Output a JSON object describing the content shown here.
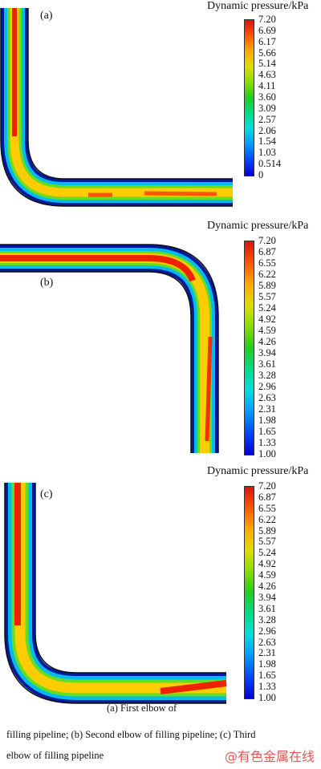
{
  "colormap": [
    "#0000d8",
    "#0044ff",
    "#0099ff",
    "#00dddd",
    "#00dd88",
    "#22cc22",
    "#88dd00",
    "#dddd00",
    "#ffaa00",
    "#ff5500",
    "#dd1111"
  ],
  "panels": [
    {
      "label": "(a)",
      "legend_title": "Dynamic pressure/kPa",
      "ticks": [
        "7.20",
        "6.69",
        "6.17",
        "5.66",
        "5.14",
        "4.63",
        "4.11",
        "3.60",
        "3.09",
        "2.57",
        "2.06",
        "1.54",
        "1.03",
        "0.514",
        "0"
      ]
    },
    {
      "label": "(b)",
      "legend_title": "Dynamic pressure/kPa",
      "ticks": [
        "7.20",
        "6.87",
        "6.55",
        "6.22",
        "5.89",
        "5.57",
        "5.24",
        "4.92",
        "4.59",
        "4.26",
        "3.94",
        "3.61",
        "3.28",
        "2.96",
        "2.63",
        "2.31",
        "1.98",
        "1.65",
        "1.33",
        "1.00"
      ]
    },
    {
      "label": "(c)",
      "legend_title": "Dynamic pressure/kPa",
      "ticks": [
        "7.20",
        "6.87",
        "6.55",
        "6.22",
        "5.89",
        "5.57",
        "5.24",
        "4.92",
        "4.59",
        "4.26",
        "3.94",
        "3.61",
        "3.28",
        "2.96",
        "2.63",
        "2.31",
        "1.98",
        "1.65",
        "1.33",
        "1.00"
      ]
    }
  ],
  "caption": {
    "line1": "(a)  First  elbow  of",
    "line2": "filling pipeline; (b) Second elbow of filling pipeline; (c) Third",
    "line3": "elbow of filling pipeline"
  },
  "watermark": "@有色金属在线"
}
